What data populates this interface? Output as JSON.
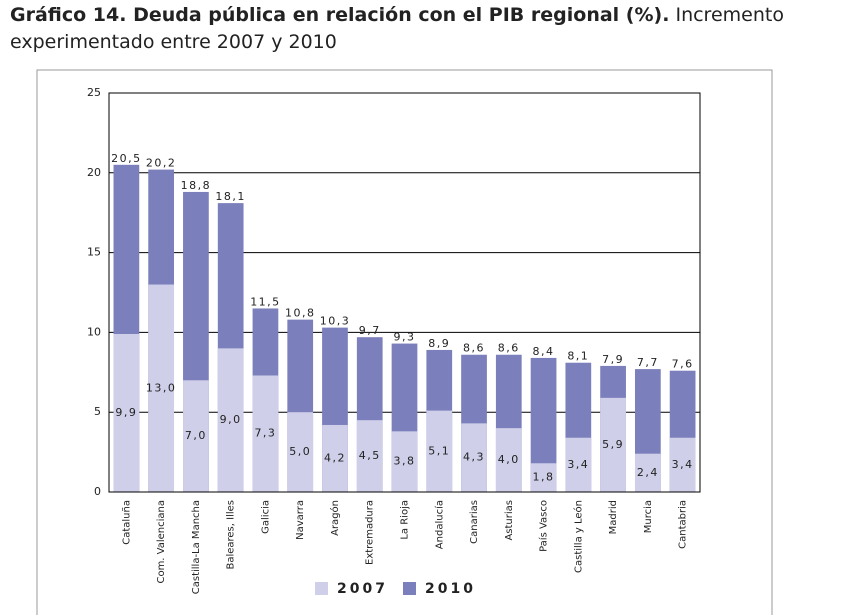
{
  "chart_data": {
    "type": "overlap_bar",
    "title": "Gráfico 14. Deuda pública en relación con el PIB regional (%).",
    "subtitle": "Incremento experimentado entre 2007 y 2010",
    "categories": [
      "Cataluña",
      "Com. Valenciana",
      "Castilla-La Mancha",
      "Baleares, Illes",
      "Galicia",
      "Navarra",
      "Aragón",
      "Extremadura",
      "La Rioja",
      "Andalucía",
      "Canarias",
      "Asturias",
      "País Vasco",
      "Castilla y León",
      "Madrid",
      "Murcia",
      "Cantabria"
    ],
    "series": [
      {
        "name": "2010",
        "color": "#7b7fbb",
        "values": [
          20.5,
          20.2,
          18.8,
          18.1,
          11.5,
          10.8,
          10.3,
          9.7,
          9.3,
          8.9,
          8.6,
          8.6,
          8.4,
          8.1,
          7.9,
          7.7,
          7.6
        ],
        "value_labels": [
          "20,5",
          "20,2",
          "18,8",
          "18,1",
          "11,5",
          "10,8",
          "10,3",
          "9,7",
          "9,3",
          "8,9",
          "8,6",
          "8,6",
          "8,4",
          "8,1",
          "7,9",
          "7,7",
          "7,6"
        ]
      },
      {
        "name": "2007",
        "color": "#cfcfe9",
        "values": [
          9.9,
          13.0,
          7.0,
          9.0,
          7.3,
          5.0,
          4.2,
          4.5,
          3.8,
          5.1,
          4.3,
          4.0,
          1.8,
          3.4,
          5.9,
          2.4,
          3.4
        ],
        "value_labels": [
          "9,9",
          "13,0",
          "7,0",
          "9,0",
          "7,3",
          "5,0",
          "4,2",
          "4,5",
          "3,8",
          "5,1",
          "4,3",
          "4,0",
          "1,8",
          "3,4",
          "5,9",
          "2,4",
          "3,4"
        ]
      }
    ],
    "ylim": [
      0,
      25
    ],
    "yticks": [
      0,
      5,
      10,
      15,
      20,
      25
    ],
    "grid": true
  }
}
